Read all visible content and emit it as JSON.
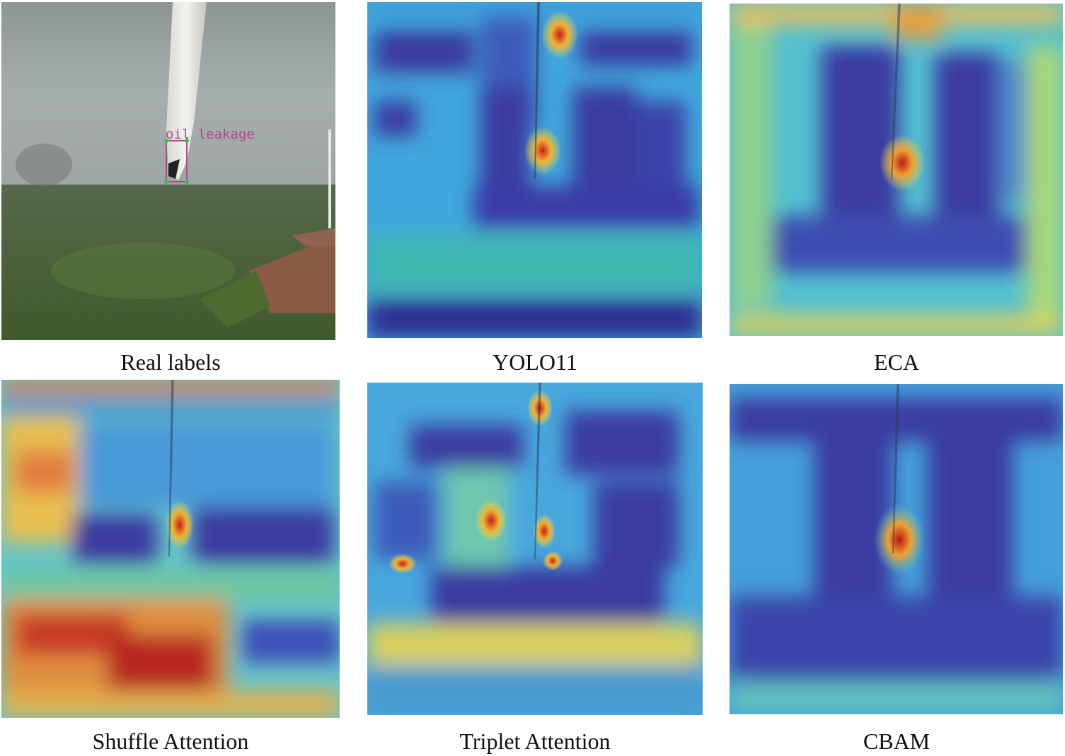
{
  "panels": [
    {
      "caption": "Real labels",
      "annotation": "oil leakage"
    },
    {
      "caption": "YOLO11"
    },
    {
      "caption": "ECA"
    },
    {
      "caption": "Shuffle Attention"
    },
    {
      "caption": "Triplet Attention"
    },
    {
      "caption": "CBAM"
    }
  ],
  "colors": {
    "heat_cold": "#2f2f9e",
    "heat_cool": "#3aa0d8",
    "heat_mid": "#e6e04a",
    "heat_hot": "#d2261f",
    "label_box": "#b04a8c"
  }
}
